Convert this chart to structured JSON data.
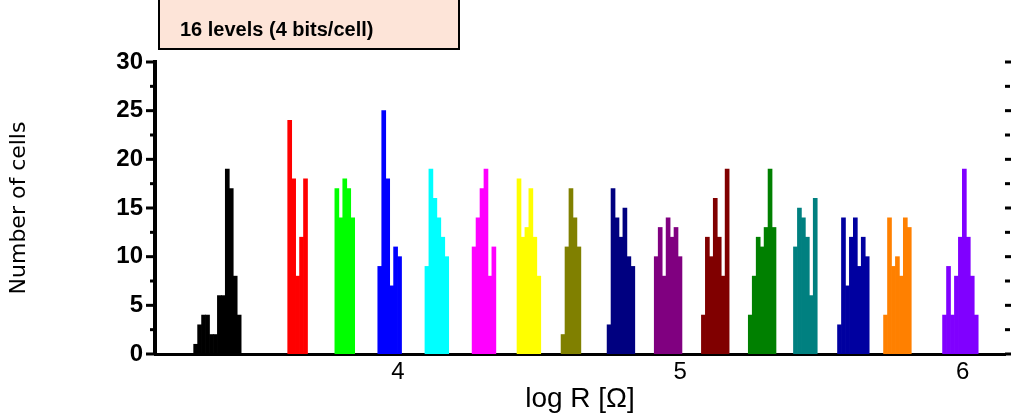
{
  "chart_data": {
    "type": "bar",
    "title": "16 levels (4 bits/cell)",
    "xlabel": "log R [Ω]",
    "ylabel": "Number of cells",
    "xlim": [
      3.14,
      6.15
    ],
    "xticks": [
      4,
      5,
      6
    ],
    "ylim": [
      0,
      30
    ],
    "yticks": [
      0,
      {
        "value": 2.5,
        "label": null
      },
      5,
      {
        "value": 7.5,
        "label": null
      },
      10,
      {
        "value": 12.5,
        "label": null
      },
      15,
      {
        "value": 17.5,
        "label": null
      },
      20,
      {
        "value": 22.5,
        "label": null
      },
      25,
      {
        "value": 27.5,
        "label": null
      },
      30
    ],
    "grid": false,
    "legend": false,
    "series": [
      {
        "color": "#000000",
        "x": [
          3.284,
          3.298,
          3.312,
          3.326,
          3.34,
          3.354,
          3.368,
          3.382,
          3.396,
          3.41,
          3.424,
          3.438
        ],
        "values": [
          1,
          3,
          4,
          4,
          2,
          2,
          6,
          6,
          19,
          17,
          8,
          4
        ]
      },
      {
        "color": "#ff0000",
        "x": [
          3.617,
          3.631,
          3.645,
          3.659,
          3.673
        ],
        "values": [
          24,
          18,
          8,
          12,
          18
        ]
      },
      {
        "color": "#00ff00",
        "x": [
          3.784,
          3.798,
          3.812,
          3.826,
          3.84
        ],
        "values": [
          17,
          14,
          18,
          17,
          14
        ]
      },
      {
        "color": "#0000ff",
        "x": [
          3.936,
          3.95,
          3.964,
          3.978,
          3.992,
          4.006
        ],
        "values": [
          9,
          25,
          18,
          7,
          11,
          10
        ]
      },
      {
        "color": "#00ffff",
        "x": [
          4.103,
          4.117,
          4.131,
          4.145,
          4.159,
          4.173
        ],
        "values": [
          9,
          19,
          16,
          14,
          12,
          10
        ]
      },
      {
        "color": "#ff00ff",
        "x": [
          4.27,
          4.284,
          4.298,
          4.312,
          4.326,
          4.34
        ],
        "values": [
          11,
          14,
          17,
          19,
          8,
          11
        ]
      },
      {
        "color": "#ffff00",
        "x": [
          4.429,
          4.443,
          4.457,
          4.471,
          4.485,
          4.499
        ],
        "values": [
          18,
          12,
          13,
          17,
          12,
          8
        ]
      },
      {
        "color": "#808000",
        "x": [
          4.585,
          4.599,
          4.613,
          4.627,
          4.641
        ],
        "values": [
          2,
          11,
          17,
          14,
          11
        ]
      },
      {
        "color": "#000080",
        "x": [
          4.748,
          4.762,
          4.776,
          4.79,
          4.804,
          4.818,
          4.832
        ],
        "values": [
          3,
          17,
          14,
          12,
          15,
          10,
          9
        ]
      },
      {
        "color": "#800080",
        "x": [
          4.915,
          4.929,
          4.943,
          4.957,
          4.971,
          4.985,
          4.999
        ],
        "values": [
          10,
          13,
          8,
          14,
          12,
          13,
          10
        ]
      },
      {
        "color": "#800000",
        "x": [
          5.082,
          5.096,
          5.11,
          5.124,
          5.138,
          5.152,
          5.166
        ],
        "values": [
          4,
          12,
          10,
          16,
          12,
          8,
          19
        ]
      },
      {
        "color": "#008000",
        "x": [
          5.248,
          5.262,
          5.276,
          5.29,
          5.304,
          5.318,
          5.332
        ],
        "values": [
          4,
          8,
          12,
          11,
          13,
          19,
          13
        ]
      },
      {
        "color": "#008080",
        "x": [
          5.408,
          5.422,
          5.436,
          5.45,
          5.464,
          5.478
        ],
        "values": [
          11,
          15,
          14,
          12,
          6,
          16
        ]
      },
      {
        "color": "#0000a0",
        "x": [
          5.564,
          5.578,
          5.592,
          5.606,
          5.62,
          5.634,
          5.648,
          5.662
        ],
        "values": [
          3,
          14,
          7,
          12,
          14,
          9,
          12,
          10
        ]
      },
      {
        "color": "#ff8000",
        "x": [
          5.727,
          5.741,
          5.755,
          5.769,
          5.783,
          5.797,
          5.811
        ],
        "values": [
          4,
          14,
          9,
          10,
          8,
          14,
          13
        ]
      },
      {
        "color": "#8000ff",
        "x": [
          5.936,
          5.95,
          5.964,
          5.978,
          5.992,
          6.006,
          6.02,
          6.034,
          6.048
        ],
        "values": [
          4,
          9,
          4,
          8,
          12,
          19,
          12,
          8,
          4
        ]
      }
    ]
  }
}
